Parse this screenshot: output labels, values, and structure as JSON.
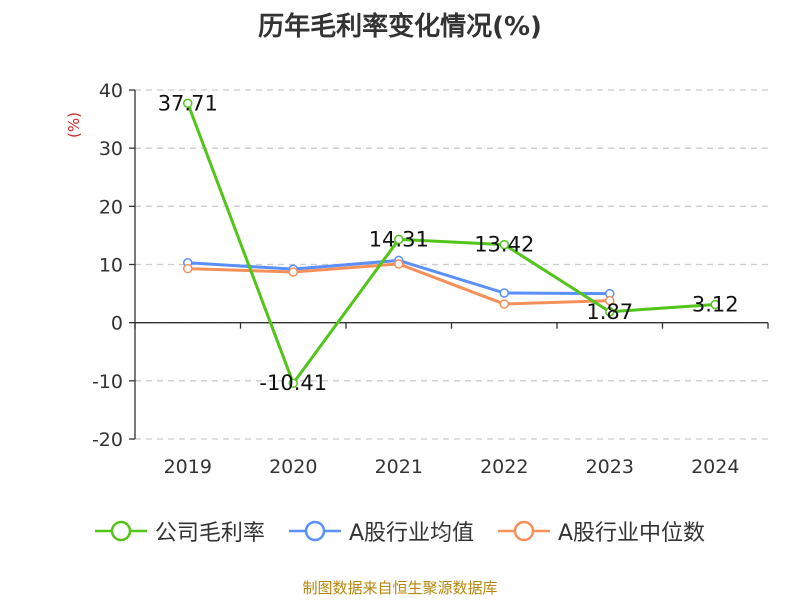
{
  "title": "历年毛利率变化情况(%)",
  "y_unit": "(%)",
  "source": "制图数据来自恒生聚源数据库",
  "chart_data": {
    "type": "line",
    "title": "历年毛利率变化情况(%)",
    "xlabel": "",
    "ylabel": "(%)",
    "categories": [
      "2019",
      "2020",
      "2021",
      "2022",
      "2023",
      "2024"
    ],
    "ylim": [
      -20,
      40
    ],
    "yticks": [
      40,
      30,
      20,
      10,
      0,
      -10,
      -20
    ],
    "ytick_labels": [
      "40",
      "30",
      "20",
      "10",
      "0",
      "-10",
      "-20"
    ],
    "grid": true,
    "legend_position": "bottom",
    "series": [
      {
        "name": "公司毛利率",
        "color": "#52c41a",
        "values": [
          37.71,
          -10.41,
          14.31,
          13.42,
          1.87,
          3.12
        ],
        "labels": [
          "37.71",
          "-10.41",
          "14.31",
          "13.42",
          "1.87",
          "3.12"
        ]
      },
      {
        "name": "A股行业均值",
        "color": "#5b8ff9",
        "values": [
          10.3,
          9.2,
          10.7,
          5.1,
          5.0,
          null
        ]
      },
      {
        "name": "A股行业中位数",
        "color": "#f6905a",
        "values": [
          9.3,
          8.7,
          10.1,
          3.2,
          3.8,
          null
        ]
      }
    ]
  }
}
